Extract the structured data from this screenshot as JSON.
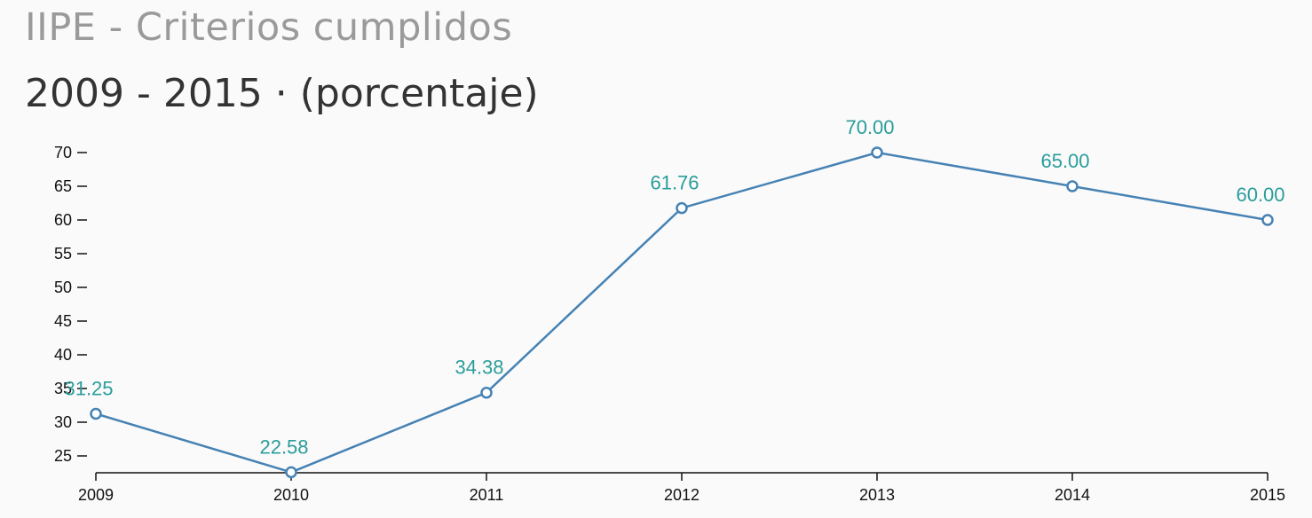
{
  "header": {
    "title": "IIPE - Criterios cumplidos",
    "subtitle": "2009 - 2015 · (porcentaje)"
  },
  "colors": {
    "line": "#4682b4",
    "label": "#2a9d9b",
    "axis": "#111111"
  },
  "chart_data": {
    "type": "line",
    "categories": [
      "2009",
      "2010",
      "2011",
      "2012",
      "2013",
      "2014",
      "2015"
    ],
    "series": [
      {
        "values": [
          31.25,
          22.58,
          34.38,
          61.76,
          70.0,
          65.0,
          60.0
        ],
        "labels": [
          "31.25",
          "22.58",
          "34.38",
          "61.76",
          "70.00",
          "65.00",
          "60.00"
        ]
      }
    ],
    "title": "IIPE - Criterios cumplidos",
    "subtitle": "2009 - 2015 · (porcentaje)",
    "xlabel": "",
    "ylabel": "",
    "y_ticks": [
      25,
      30,
      35,
      40,
      45,
      50,
      55,
      60,
      65,
      70
    ],
    "ylim": [
      22.58,
      70
    ],
    "grid": false,
    "legend": "none"
  }
}
